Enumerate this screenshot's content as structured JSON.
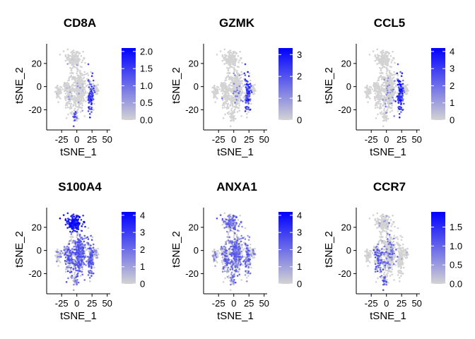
{
  "colors": {
    "low": "#d3d3d3",
    "high": "#0000ff",
    "axis": "#000000"
  },
  "panels": [
    {
      "title": "CD8A",
      "xlabel": "tSNE_1",
      "ylabel": "tSNE_2",
      "legend_ticks": [
        "2.0",
        "1.5",
        "1.0",
        "0.5",
        "0.0"
      ],
      "legend_values": [
        2.0,
        1.5,
        1.0,
        0.5,
        0.0
      ],
      "legend_max": 2.1
    },
    {
      "title": "GZMK",
      "xlabel": "tSNE_1",
      "ylabel": "tSNE_2",
      "legend_ticks": [
        "3",
        "2",
        "1",
        "0"
      ],
      "legend_values": [
        3,
        2,
        1,
        0
      ],
      "legend_max": 3.3
    },
    {
      "title": "CCL5",
      "xlabel": "tSNE_1",
      "ylabel": "tSNE_2",
      "legend_ticks": [
        "4",
        "3",
        "2",
        "1",
        "0"
      ],
      "legend_values": [
        4,
        3,
        2,
        1,
        0
      ],
      "legend_max": 4.2
    },
    {
      "title": "S100A4",
      "xlabel": "tSNE_1",
      "ylabel": "tSNE_2",
      "legend_ticks": [
        "4",
        "3",
        "2",
        "1",
        "0"
      ],
      "legend_values": [
        4,
        3,
        2,
        1,
        0
      ],
      "legend_max": 4.2
    },
    {
      "title": "ANXA1",
      "xlabel": "tSNE_1",
      "ylabel": "tSNE_2",
      "legend_ticks": [
        "4",
        "3",
        "2",
        "1",
        "0"
      ],
      "legend_values": [
        4,
        3,
        2,
        1,
        0
      ],
      "legend_max": 4.2
    },
    {
      "title": "CCR7",
      "xlabel": "tSNE_1",
      "ylabel": "tSNE_2",
      "legend_ticks": [
        "1.5",
        "1.0",
        "0.5",
        "0.0"
      ],
      "legend_values": [
        1.5,
        1.0,
        0.5,
        0.0
      ],
      "legend_max": 1.9
    }
  ],
  "chart_data": {
    "type": "scatter",
    "xlim": [
      -45,
      55
    ],
    "ylim": [
      -35,
      37
    ],
    "x_ticks": [
      "-25",
      "0",
      "25",
      "50"
    ],
    "x_tick_values": [
      -25,
      0,
      25,
      50
    ],
    "y_ticks": [
      "20",
      "0",
      "-20"
    ],
    "y_tick_values": [
      20,
      0,
      -20
    ],
    "grid": false,
    "legend": "right"
  }
}
